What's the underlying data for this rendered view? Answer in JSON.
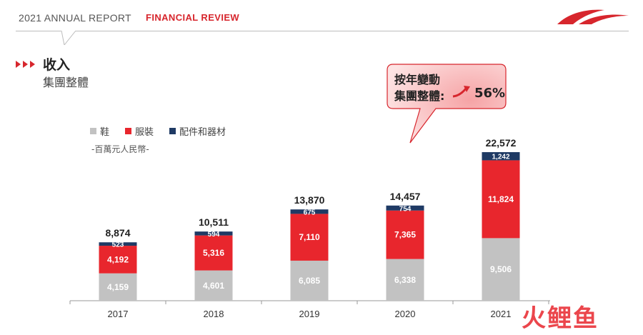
{
  "header": {
    "report_title": "2021 ANNUAL REPORT",
    "section": "FINANCIAL REVIEW"
  },
  "title": "收入",
  "subtitle": "集團整體",
  "unit_label": "-百萬元人民幣-",
  "callout": {
    "line1": "按年變動",
    "line2": "集團整體:",
    "value": "56%"
  },
  "watermark_text": "火鲤鱼",
  "colors": {
    "footwear": "#c2c2c2",
    "apparel": "#e8262d",
    "accessories": "#1f3a64",
    "brand_red": "#d7262d"
  },
  "chart_data": {
    "type": "bar",
    "stacked": true,
    "categories": [
      "2017",
      "2018",
      "2019",
      "2020",
      "2021"
    ],
    "series": [
      {
        "name": "鞋",
        "values": [
          4159,
          4601,
          6085,
          6338,
          9506
        ],
        "label_color": "#ffffff"
      },
      {
        "name": "服裝",
        "values": [
          4192,
          5316,
          7110,
          7365,
          11824
        ],
        "label_color": "#ffffff"
      },
      {
        "name": "配件和器材",
        "values": [
          523,
          594,
          675,
          754,
          1242
        ],
        "label_color": "#ffffff"
      }
    ],
    "totals": [
      "8,874",
      "10,511",
      "13,870",
      "14,457",
      "22,572"
    ],
    "value_labels": [
      [
        "4,159",
        "4,601",
        "6,085",
        "6,338",
        "9,506"
      ],
      [
        "4,192",
        "5,316",
        "7,110",
        "7,365",
        "11,824"
      ],
      [
        "523",
        "594",
        "675",
        "754",
        "1,242"
      ]
    ],
    "ylim": [
      0,
      22572
    ],
    "legend_position": "top-left",
    "grid": false
  }
}
